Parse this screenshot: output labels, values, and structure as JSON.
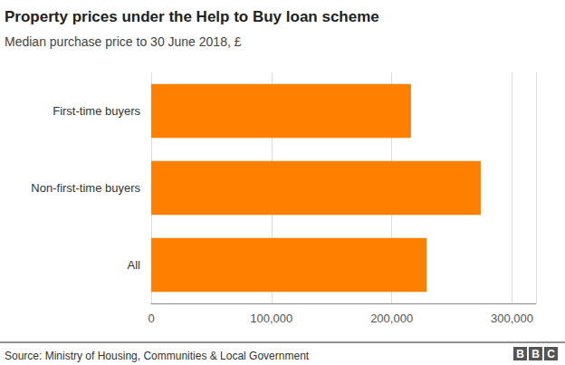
{
  "chart_data": {
    "type": "bar",
    "orientation": "horizontal",
    "title": "Property prices under the Help to Buy loan scheme",
    "subtitle": "Median purchase price to 30 June 2018, £",
    "categories": [
      "First-time buyers",
      "Non-first-time buyers",
      "All"
    ],
    "values": [
      216000,
      274000,
      229000
    ],
    "color": "#ff7f00",
    "xlim": [
      0,
      320000
    ],
    "xticks": [
      0,
      {
        "value": 100000,
        "label": "100,000"
      },
      {
        "value": 200000,
        "label": "200,000"
      },
      {
        "value": 300000,
        "label": "300,000"
      }
    ],
    "grid": true,
    "source": "Source: Ministry of Housing, Communities & Local Government",
    "credit": "BBC"
  }
}
